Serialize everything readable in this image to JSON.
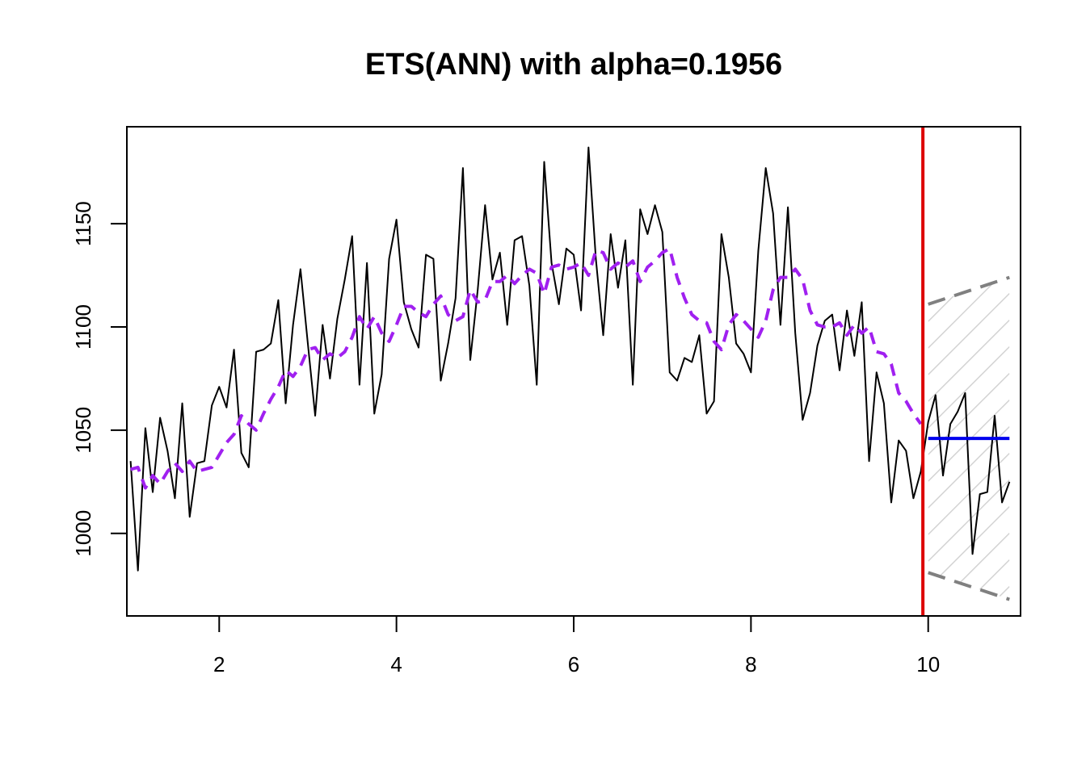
{
  "chart_data": {
    "type": "line",
    "title": "ETS(ANN) with alpha=0.1956",
    "xlabel": "",
    "ylabel": "",
    "xlim": [
      0.958,
      11.042
    ],
    "ylim": [
      960,
      1197
    ],
    "x_ticks": [
      2,
      4,
      6,
      8,
      10
    ],
    "y_ticks": [
      1000,
      1050,
      1100,
      1150
    ],
    "grid": false,
    "forecast_origin": 9.94,
    "colors": {
      "actual": "#000000",
      "fitted": "#a020f0",
      "forecast": "#0000ee",
      "interval": "#808080",
      "origin_line": "#dd0000",
      "hatch": "#d3d3d3"
    },
    "series": [
      {
        "role": "actual",
        "style": "solid",
        "x": [
          1.0,
          1.083,
          1.167,
          1.25,
          1.333,
          1.417,
          1.5,
          1.583,
          1.667,
          1.75,
          1.833,
          1.917,
          2.0,
          2.083,
          2.167,
          2.25,
          2.333,
          2.417,
          2.5,
          2.583,
          2.667,
          2.75,
          2.833,
          2.917,
          3.0,
          3.083,
          3.167,
          3.25,
          3.333,
          3.417,
          3.5,
          3.583,
          3.667,
          3.75,
          3.833,
          3.917,
          4.0,
          4.083,
          4.167,
          4.25,
          4.333,
          4.417,
          4.5,
          4.583,
          4.667,
          4.75,
          4.833,
          4.917,
          5.0,
          5.083,
          5.167,
          5.25,
          5.333,
          5.417,
          5.5,
          5.583,
          5.667,
          5.75,
          5.833,
          5.917,
          6.0,
          6.083,
          6.167,
          6.25,
          6.333,
          6.417,
          6.5,
          6.583,
          6.667,
          6.75,
          6.833,
          6.917,
          7.0,
          7.083,
          7.167,
          7.25,
          7.333,
          7.417,
          7.5,
          7.583,
          7.667,
          7.75,
          7.833,
          7.917,
          8.0,
          8.083,
          8.167,
          8.25,
          8.333,
          8.417,
          8.5,
          8.583,
          8.667,
          8.75,
          8.833,
          8.917,
          9.0,
          9.083,
          9.167,
          9.25,
          9.333,
          9.417,
          9.5,
          9.583,
          9.667,
          9.75,
          9.833,
          9.917,
          10.0,
          10.083,
          10.167,
          10.25,
          10.333,
          10.417,
          10.5,
          10.583,
          10.667,
          10.75,
          10.833,
          10.917
        ],
        "values": [
          1035,
          982,
          1051,
          1020,
          1056,
          1040,
          1017,
          1063,
          1008,
          1034,
          1035,
          1062,
          1071,
          1061,
          1089,
          1039,
          1032,
          1088,
          1089,
          1092,
          1113,
          1063,
          1101,
          1128,
          1092,
          1057,
          1101,
          1075,
          1104,
          1123,
          1144,
          1072,
          1131,
          1058,
          1077,
          1133,
          1152,
          1112,
          1099,
          1090,
          1135,
          1133,
          1074,
          1092,
          1114,
          1177,
          1084,
          1118,
          1159,
          1123,
          1136,
          1101,
          1142,
          1144,
          1120,
          1072,
          1180,
          1131,
          1111,
          1138,
          1135,
          1108,
          1187,
          1133,
          1096,
          1145,
          1119,
          1142,
          1072,
          1157,
          1145,
          1159,
          1146,
          1078,
          1074,
          1085,
          1083,
          1096,
          1058,
          1064,
          1145,
          1124,
          1092,
          1087,
          1078,
          1137,
          1177,
          1155,
          1101,
          1158,
          1097,
          1055,
          1068,
          1091,
          1103,
          1106,
          1079,
          1108,
          1086,
          1112,
          1035,
          1078,
          1063,
          1015,
          1045,
          1040,
          1017,
          1030,
          1054,
          1067,
          1028,
          1053,
          1059,
          1068,
          990,
          1019,
          1020,
          1057,
          1015,
          1025
        ]
      },
      {
        "role": "fitted",
        "style": "dashed",
        "x": [
          1.0,
          1.083,
          1.167,
          1.25,
          1.333,
          1.417,
          1.5,
          1.583,
          1.667,
          1.75,
          1.833,
          1.917,
          2.0,
          2.083,
          2.167,
          2.25,
          2.333,
          2.417,
          2.5,
          2.583,
          2.667,
          2.75,
          2.833,
          2.917,
          3.0,
          3.083,
          3.167,
          3.25,
          3.333,
          3.417,
          3.5,
          3.583,
          3.667,
          3.75,
          3.833,
          3.917,
          4.0,
          4.083,
          4.167,
          4.25,
          4.333,
          4.417,
          4.5,
          4.583,
          4.667,
          4.75,
          4.833,
          4.917,
          5.0,
          5.083,
          5.167,
          5.25,
          5.333,
          5.417,
          5.5,
          5.583,
          5.667,
          5.75,
          5.833,
          5.917,
          6.0,
          6.083,
          6.167,
          6.25,
          6.333,
          6.417,
          6.5,
          6.583,
          6.667,
          6.75,
          6.833,
          6.917,
          7.0,
          7.083,
          7.167,
          7.25,
          7.333,
          7.417,
          7.5,
          7.583,
          7.667,
          7.75,
          7.833,
          7.917,
          8.0,
          8.083,
          8.167,
          8.25,
          8.333,
          8.417,
          8.5,
          8.583,
          8.667,
          8.75,
          8.833,
          8.917,
          9.0,
          9.083,
          9.167,
          9.25,
          9.333,
          9.417,
          9.5,
          9.583,
          9.667,
          9.75,
          9.833,
          9.917
        ],
        "values": [
          1031,
          1032,
          1022,
          1028,
          1024,
          1030,
          1034,
          1030,
          1035,
          1030,
          1031,
          1032,
          1038,
          1044,
          1048,
          1057,
          1053,
          1050,
          1058,
          1065,
          1071,
          1079,
          1076,
          1081,
          1089,
          1090,
          1084,
          1087,
          1085,
          1088,
          1095,
          1105,
          1099,
          1105,
          1097,
          1093,
          1101,
          1110,
          1110,
          1107,
          1105,
          1111,
          1115,
          1106,
          1103,
          1105,
          1118,
          1112,
          1113,
          1122,
          1122,
          1125,
          1121,
          1125,
          1128,
          1126,
          1116,
          1129,
          1130,
          1128,
          1129,
          1131,
          1125,
          1137,
          1136,
          1128,
          1131,
          1129,
          1132,
          1122,
          1129,
          1132,
          1136,
          1138,
          1124,
          1114,
          1106,
          1103,
          1102,
          1093,
          1089,
          1101,
          1106,
          1103,
          1099,
          1095,
          1103,
          1118,
          1124,
          1124,
          1128,
          1123,
          1108,
          1101,
          1100,
          1100,
          1102,
          1096,
          1101,
          1097,
          1100,
          1088,
          1087,
          1082,
          1068,
          1064,
          1058,
          1053
        ]
      },
      {
        "role": "forecast",
        "style": "solid",
        "x": [
          10.0,
          10.917
        ],
        "values": [
          1046,
          1046
        ]
      },
      {
        "role": "upper_interval",
        "style": "dashed",
        "x": [
          10.0,
          10.917
        ],
        "values": [
          1111,
          1124
        ]
      },
      {
        "role": "lower_interval",
        "style": "dashed",
        "x": [
          10.0,
          10.917
        ],
        "values": [
          981,
          968
        ]
      }
    ]
  }
}
